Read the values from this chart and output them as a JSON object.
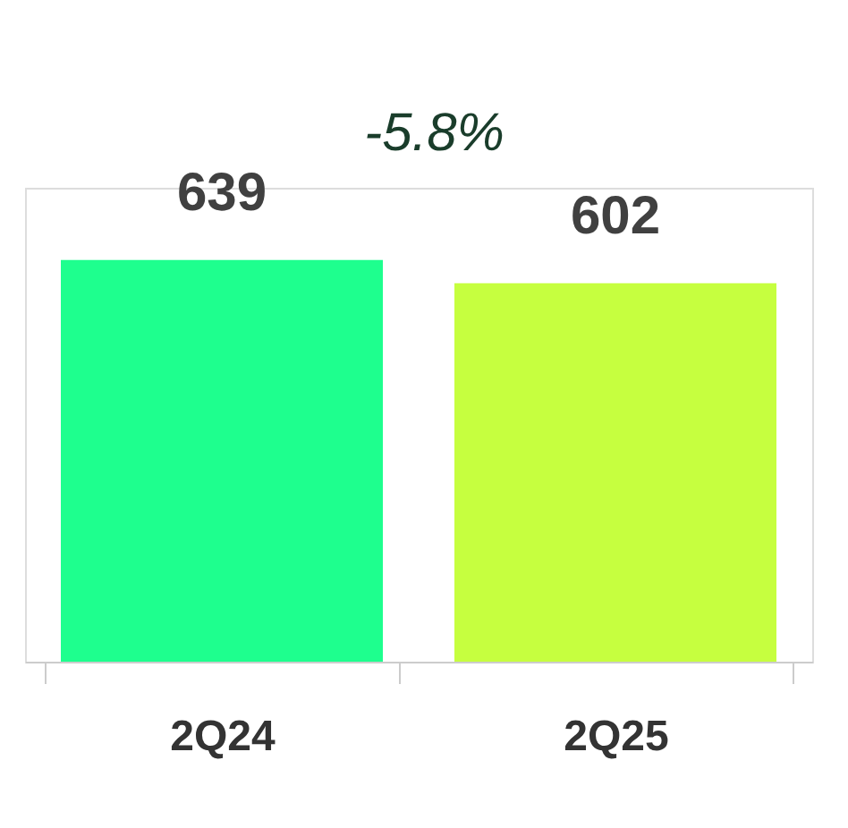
{
  "chart_data": {
    "type": "bar",
    "categories": [
      "2Q24",
      "2Q25"
    ],
    "values": [
      639,
      602
    ],
    "colors": [
      "#1eff8e",
      "#c6ff3f"
    ],
    "data_labels": true,
    "annotations": [
      "-5.8%"
    ],
    "grid": false
  }
}
